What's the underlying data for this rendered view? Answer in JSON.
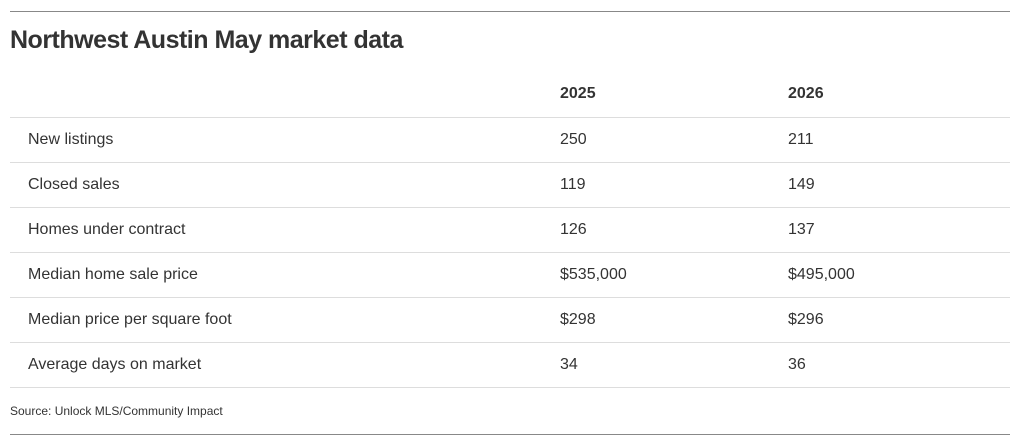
{
  "title": "Northwest Austin May market data",
  "table": {
    "headers": [
      "2025",
      "2026"
    ],
    "rows": [
      [
        "New listings",
        "250",
        "211"
      ],
      [
        "Closed sales",
        "119",
        "149"
      ],
      [
        "Homes under contract",
        "126",
        "137"
      ],
      [
        "Median home sale price",
        "$535,000",
        "$495,000"
      ],
      [
        "Median price per square foot",
        "$298",
        "$296"
      ],
      [
        "Average days on market",
        "34",
        "36"
      ]
    ]
  },
  "source": "Source: Unlock MLS/Community Impact"
}
